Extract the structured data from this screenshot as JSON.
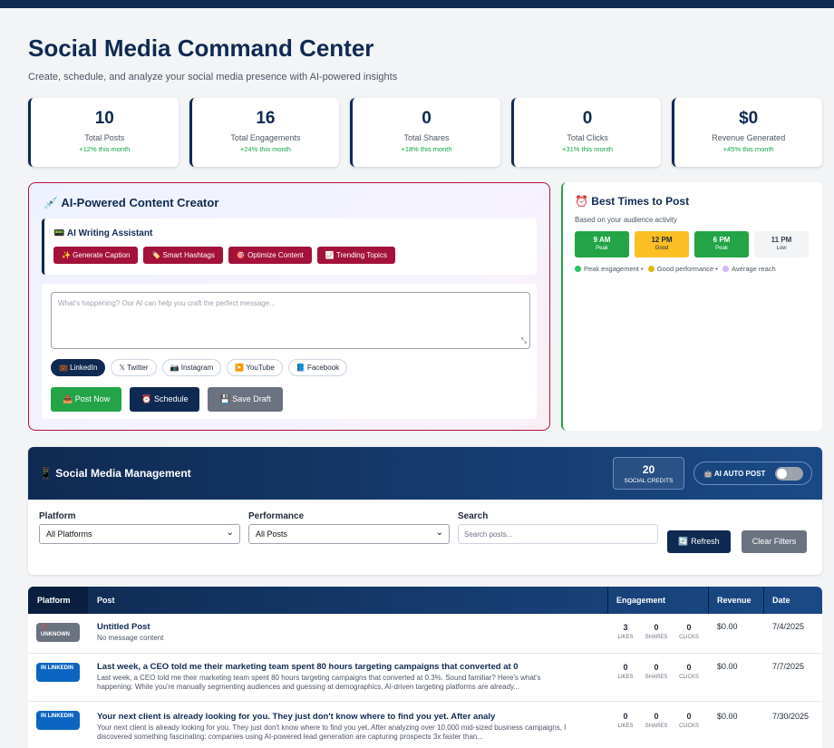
{
  "header": {
    "title": "Social Media Command Center",
    "subtitle": "Create, schedule, and analyze your social media presence with AI-powered insights"
  },
  "stats": [
    {
      "value": "10",
      "label": "Total Posts",
      "change": "+12% this month"
    },
    {
      "value": "16",
      "label": "Total Engagements",
      "change": "+24% this month"
    },
    {
      "value": "0",
      "label": "Total Shares",
      "change": "+18% this month"
    },
    {
      "value": "0",
      "label": "Total Clicks",
      "change": "+31% this month"
    },
    {
      "value": "$0",
      "label": "Revenue Generated",
      "change": "+45% this month"
    }
  ],
  "creator": {
    "title": "💉 AI-Powered Content Creator",
    "assistant_title": "📟 AI Writing Assistant",
    "ai_buttons": [
      "✨ Generate Caption",
      "🏷️ Smart Hashtags",
      "🎯 Optimize Content",
      "📈 Trending Topics"
    ],
    "placeholder": "What's happening? Our AI can help you craft the perfect message...",
    "platforms": [
      "💼 LinkedIn",
      "𝕏 Twitter",
      "📷 Instagram",
      "▶️ YouTube",
      "📘 Facebook"
    ],
    "actions": {
      "post": "📤 Post Now",
      "schedule": "⏰ Schedule",
      "draft": "💾 Save Draft"
    }
  },
  "best_times": {
    "title": "⏰ Best Times to Post",
    "subtitle": "Based on your audience activity",
    "slots": [
      {
        "time": "9 AM",
        "tag": "Peak"
      },
      {
        "time": "12 PM",
        "tag": "Good"
      },
      {
        "time": "6 PM",
        "tag": "Peak"
      },
      {
        "time": "11 PM",
        "tag": "Low"
      }
    ],
    "legend": {
      "peak": "Peak engagement •",
      "good": "Good performance •",
      "avg": "Average reach"
    }
  },
  "management": {
    "title": "📱 Social Media Management",
    "credits": "20",
    "credits_label": "SOCIAL CREDITS",
    "auto_post": "🤖 AI AUTO POST",
    "filters": {
      "platform_label": "Platform",
      "platform_value": "All Platforms",
      "performance_label": "Performance",
      "performance_value": "All Posts",
      "search_label": "Search",
      "search_placeholder": "Search posts...",
      "refresh": "🔄 Refresh",
      "clear": "Clear Filters"
    }
  },
  "table": {
    "headers": {
      "platform": "Platform",
      "post": "Post",
      "engagement": "Engagement",
      "revenue": "Revenue",
      "date": "Date"
    },
    "eng_labels": {
      "likes": "LIKES",
      "shares": "SHARES",
      "clicks": "CLICKS"
    },
    "rows": [
      {
        "badge": "❓ UNKNOWN",
        "title": "Untitled Post",
        "body": "No message content",
        "likes": "3",
        "shares": "0",
        "clicks": "0",
        "revenue": "$0.00",
        "date": "7/4/2025"
      },
      {
        "badge": "IN LINKEDIN",
        "title": "Last week, a CEO told me their marketing team spent 80 hours targeting campaigns that converted at 0",
        "body": "Last week, a CEO told me their marketing team spent 80 hours targeting campaigns that converted at 0.3%. Sound familiar? Here's what's happening: While you're manually segmenting audiences and guessing at demographics, AI-driven targeting platforms are already...",
        "likes": "0",
        "shares": "0",
        "clicks": "0",
        "revenue": "$0.00",
        "date": "7/7/2025"
      },
      {
        "badge": "IN LINKEDIN",
        "title": "Your next client is already looking for you. They just don't know where to find you yet. After analy",
        "body": "Your next client is already looking for you. They just don't know where to find you yet. After analyzing over 10,000 mid-sized business campaigns, I discovered something fascinating: companies using AI-powered lead generation are capturing prospects 3x faster than...",
        "likes": "0",
        "shares": "0",
        "clicks": "0",
        "revenue": "$0.00",
        "date": "7/30/2025"
      }
    ]
  }
}
